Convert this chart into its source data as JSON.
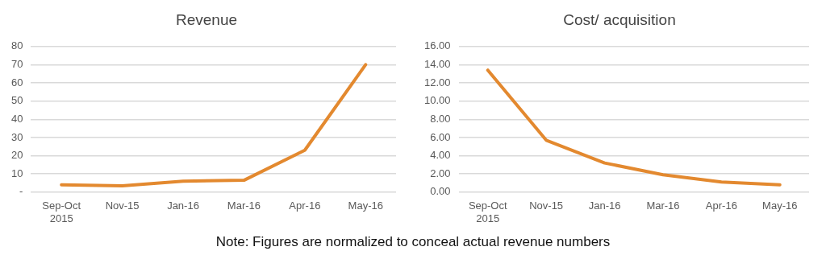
{
  "chart_data": [
    {
      "type": "line",
      "title": "Revenue",
      "categories": [
        "Sep-Oct 2015",
        "Nov-15",
        "Jan-16",
        "Mar-16",
        "Apr-16",
        "May-16"
      ],
      "series": [
        {
          "color": "#e3892f",
          "values": [
            4,
            3.5,
            6,
            6.5,
            23,
            70
          ]
        }
      ],
      "ylim": [
        0,
        80
      ],
      "yticks": [
        {
          "value": 0,
          "label": "-"
        },
        10,
        20,
        30,
        40,
        50,
        60,
        70,
        80
      ],
      "grid": "y",
      "legend": false,
      "marker": "none",
      "line_style": "solid",
      "annotations": [
        "Note: Figures are normalized to conceal actual revenue numbers"
      ]
    },
    {
      "type": "line",
      "title": "Cost/ acquisition",
      "categories": [
        "Sep-Oct 2015",
        "Nov-15",
        "Jan-16",
        "Mar-16",
        "Apr-16",
        "May-16"
      ],
      "series": [
        {
          "color": "#e3892f",
          "values": [
            13.4,
            5.7,
            3.2,
            1.9,
            1.1,
            0.8
          ]
        }
      ],
      "ylim": [
        0,
        16
      ],
      "yticks": [
        {
          "value": 0,
          "label": "0.00"
        },
        {
          "value": 2,
          "label": "2.00"
        },
        {
          "value": 4,
          "label": "4.00"
        },
        {
          "value": 6,
          "label": "6.00"
        },
        {
          "value": 8,
          "label": "8.00"
        },
        {
          "value": 10,
          "label": "10.00"
        },
        {
          "value": 12,
          "label": "12.00"
        },
        {
          "value": 14,
          "label": "14.00"
        },
        {
          "value": 16,
          "label": "16.00"
        }
      ],
      "grid": "y",
      "legend": false,
      "marker": "none",
      "line_style": "solid"
    }
  ]
}
